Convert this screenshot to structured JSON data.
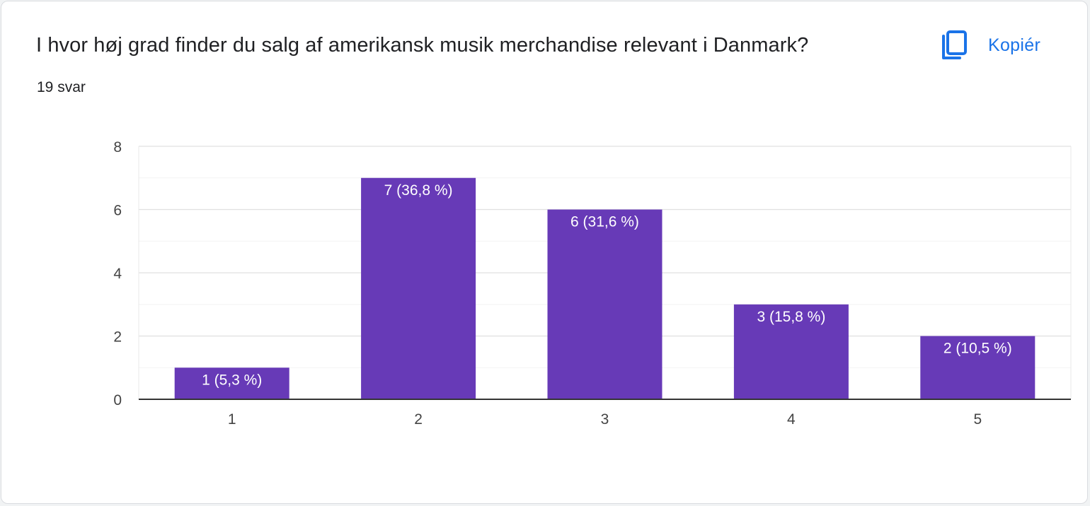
{
  "question": {
    "title": "I hvor høj grad finder du salg af amerikansk musik merchandise relevant i Danmark?",
    "response_count": "19 svar"
  },
  "copy_button": {
    "label": "Kopiér",
    "icon": "copy-icon"
  },
  "colors": {
    "bar": "#673ab7",
    "link": "#1a73e8",
    "text": "#202124",
    "bar_label": "#ffffff"
  },
  "chart_data": {
    "type": "bar",
    "categories": [
      "1",
      "2",
      "3",
      "4",
      "5"
    ],
    "values": [
      1,
      7,
      6,
      3,
      2
    ],
    "data_labels": [
      "1 (5,3 %)",
      "7 (36,8 %)",
      "6 (31,6 %)",
      "3 (15,8 %)",
      "2 (10,5 %)"
    ],
    "ylim": [
      0,
      8
    ],
    "y_ticks": [
      "0",
      "2",
      "4",
      "6",
      "8"
    ],
    "grid": true,
    "title": "",
    "xlabel": "",
    "ylabel": ""
  }
}
